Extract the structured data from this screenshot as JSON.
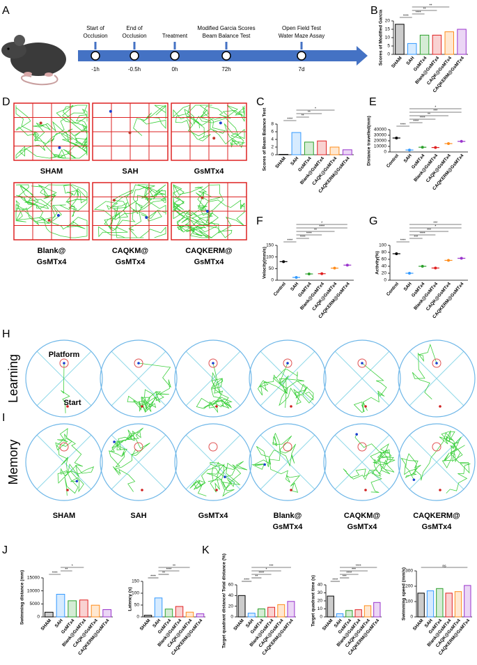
{
  "panel_labels": [
    "A",
    "B",
    "C",
    "D",
    "E",
    "F",
    "G",
    "H",
    "I",
    "J",
    "K"
  ],
  "timeline": {
    "events": [
      {
        "label": [
          "Start of",
          "Occlusion"
        ],
        "time": "-1h"
      },
      {
        "label": [
          "End of",
          "Occlusion"
        ],
        "time": "-0.5h"
      },
      {
        "label": [
          "Treatment"
        ],
        "time": "0h"
      },
      {
        "label": [
          "Modified Garcia Scores",
          "Beam Balance Test"
        ],
        "time": "72h"
      },
      {
        "label": [
          "Open Field Test",
          "Water Maze Assay"
        ],
        "time": "7d"
      }
    ]
  },
  "open_field": {
    "groups": [
      [
        "SHAM"
      ],
      [
        "SAH"
      ],
      [
        "GsMTx4"
      ],
      [
        "Blank@",
        "GsMTx4"
      ],
      [
        "CAQKM@",
        "GsMTx4"
      ],
      [
        "CAQKERM@",
        "GsMTx4"
      ]
    ]
  },
  "water_maze": {
    "rows": [
      "Learning",
      "Memory"
    ],
    "platform": "Platform",
    "start": "Start",
    "groups": [
      [
        "SHAM"
      ],
      [
        "SAH"
      ],
      [
        "GsMTx4"
      ],
      [
        "Blank@",
        "GsMTx4"
      ],
      [
        "CAQKM@",
        "GsMTx4"
      ],
      [
        "CAQKERM@",
        "GsMTx4"
      ]
    ]
  },
  "chart_data": [
    {
      "type": "bar",
      "ylabel": "Scores of Modified Garcia",
      "categories": [
        "SHAM",
        "SAH",
        "GsMTx4",
        "Blank@GsMTx4",
        "CAQK@GsMTx4",
        "CAQKERM@GsMTx4"
      ],
      "values": [
        18,
        6.5,
        11.5,
        11.5,
        13.5,
        15
      ],
      "colors": [
        "#000000",
        "#3399ff",
        "#2ca02c",
        "#e02020",
        "#ff8c1a",
        "#9933cc"
      ],
      "ylim": [
        0,
        20
      ],
      "yticks": [
        0,
        5,
        10,
        15,
        20
      ],
      "annotations": [
        "****",
        "****",
        "**",
        "**"
      ]
    },
    {
      "type": "bar",
      "ylabel": "Scores of Beam Balance Test",
      "categories": [
        "SHAM",
        "SAH",
        "GsMTx4",
        "Blank@GsMTx4",
        "CAQK@GsMTx4",
        "CAQKERM@GsMTx4"
      ],
      "values": [
        0.1,
        5.8,
        3.3,
        3.6,
        2,
        1.3
      ],
      "colors": [
        "#000000",
        "#3399ff",
        "#2ca02c",
        "#e02020",
        "#ff8c1a",
        "#9933cc"
      ],
      "ylim": [
        0,
        8
      ],
      "yticks": [
        0,
        2,
        4,
        6,
        8
      ],
      "annotations": [
        "****",
        "**",
        "**",
        "*"
      ]
    },
    {
      "type": "scatter",
      "ylabel": "Distance travelled(mm)",
      "categories": [
        "Control",
        "SAH",
        "GsMTx4",
        "Blank@GsMTx4",
        "CAQK@GsMTx4",
        "CAQKERM@GsMTx4"
      ],
      "values": [
        25000,
        3500,
        8500,
        8000,
        15000,
        19000
      ],
      "colors": [
        "#000000",
        "#3399ff",
        "#2ca02c",
        "#e02020",
        "#ff8c1a",
        "#9933cc"
      ],
      "ylim": [
        0,
        40000
      ],
      "yticks": [
        0,
        10000,
        20000,
        30000,
        40000
      ],
      "annotations": [
        "****",
        "****",
        "****",
        "**",
        "***",
        "*"
      ]
    },
    {
      "type": "scatter",
      "ylabel": "Velocity(mm/s)",
      "categories": [
        "Control",
        "SAH",
        "GsMTx4",
        "Blank@GsMTx4",
        "CAQK@GsMTx4",
        "CAQKERM@GsMTx4"
      ],
      "values": [
        80,
        12,
        27,
        28,
        52,
        65
      ],
      "colors": [
        "#000000",
        "#3399ff",
        "#2ca02c",
        "#e02020",
        "#ff8c1a",
        "#9933cc"
      ],
      "ylim": [
        0,
        150
      ],
      "yticks": [
        0,
        50,
        100,
        150
      ],
      "annotations": [
        "****",
        "****",
        "****",
        "**",
        "****",
        "*"
      ]
    },
    {
      "type": "scatter",
      "ylabel": "Activity(%)",
      "categories": [
        "Control",
        "SAH",
        "GsMTx4",
        "Blank@GsMTx4",
        "CAQK@GsMTx4",
        "CAQKERM@GsMTx4"
      ],
      "values": [
        76,
        20,
        40,
        35,
        57,
        63
      ],
      "colors": [
        "#000000",
        "#3399ff",
        "#2ca02c",
        "#e02020",
        "#ff8c1a",
        "#9933cc"
      ],
      "ylim": [
        0,
        100
      ],
      "yticks": [
        0,
        20,
        40,
        60,
        80,
        100
      ],
      "annotations": [
        "****",
        "***",
        "****",
        "***",
        "*",
        "***"
      ]
    },
    {
      "type": "bar",
      "ylabel": "Swimming distance (mm)",
      "categories": [
        "SHAM",
        "SAH",
        "GsMTx4",
        "Blank@GsMTx4",
        "CAQK@GsMTx4",
        "CAQKERM@GsMTx4"
      ],
      "values": [
        1800,
        8700,
        6200,
        6500,
        4500,
        2800
      ],
      "colors": [
        "#000000",
        "#3399ff",
        "#2ca02c",
        "#e02020",
        "#ff8c1a",
        "#9933cc"
      ],
      "ylim": [
        0,
        15000
      ],
      "yticks": [
        0,
        5000,
        10000,
        15000
      ],
      "annotations": [
        "****",
        "**",
        "*"
      ]
    },
    {
      "type": "bar",
      "ylabel": "Latency (s)",
      "categories": [
        "SHAM",
        "SAH",
        "GsMTx4",
        "Blank@GsMTx4",
        "CAQK@GsMTx4",
        "CAQKERM@GsMTx4"
      ],
      "values": [
        7,
        80,
        33,
        44,
        20,
        13
      ],
      "colors": [
        "#000000",
        "#3399ff",
        "#2ca02c",
        "#e02020",
        "#ff8c1a",
        "#9933cc"
      ],
      "ylim": [
        0,
        150
      ],
      "yticks": [
        0,
        50,
        100,
        150
      ],
      "annotations": [
        "****",
        "**",
        "****",
        "**"
      ]
    },
    {
      "type": "bar",
      "ylabel": "Target quadrant distance/ Total distance (%)",
      "categories": [
        "SHAM",
        "SAH",
        "GsMTx4",
        "Blank@GsMTx4",
        "CAQK@GsMTx4",
        "CAQKERM@GsMTx4"
      ],
      "values": [
        40,
        7,
        15,
        18,
        23,
        29
      ],
      "colors": [
        "#000000",
        "#3399ff",
        "#2ca02c",
        "#e02020",
        "#ff8c1a",
        "#9933cc"
      ],
      "ylim": [
        0,
        60
      ],
      "yticks": [
        0,
        20,
        40,
        60
      ],
      "annotations": [
        "****",
        "**",
        "****",
        "*",
        "***"
      ]
    },
    {
      "type": "bar",
      "ylabel": "Target quadrant time (s)",
      "categories": [
        "SHAM",
        "SAH",
        "GsMTx4",
        "Blank@GsMTx4",
        "CAQK@GsMTx4",
        "CAQKERM@GsMTx4"
      ],
      "values": [
        26,
        4,
        8,
        9,
        14,
        18
      ],
      "colors": [
        "#000000",
        "#3399ff",
        "#2ca02c",
        "#e02020",
        "#ff8c1a",
        "#9933cc"
      ],
      "ylim": [
        0,
        40
      ],
      "yticks": [
        0,
        10,
        20,
        30,
        40
      ],
      "annotations": [
        "****",
        "***",
        "****",
        "***",
        "****"
      ]
    },
    {
      "type": "bar",
      "ylabel": "Swimming speed (mm/s)",
      "categories": [
        "SHAM",
        "SAH",
        "GsMTx4",
        "Blank@GsMTx4",
        "CAQK@GsMTx4",
        "CAQKERM@GsMTx4"
      ],
      "values": [
        155,
        170,
        185,
        155,
        165,
        205
      ],
      "colors": [
        "#000000",
        "#3399ff",
        "#2ca02c",
        "#e02020",
        "#ff8c1a",
        "#9933cc"
      ],
      "ylim": [
        0,
        300
      ],
      "yticks": [
        0,
        100,
        200,
        300
      ],
      "annotations": [
        "ns"
      ]
    }
  ]
}
